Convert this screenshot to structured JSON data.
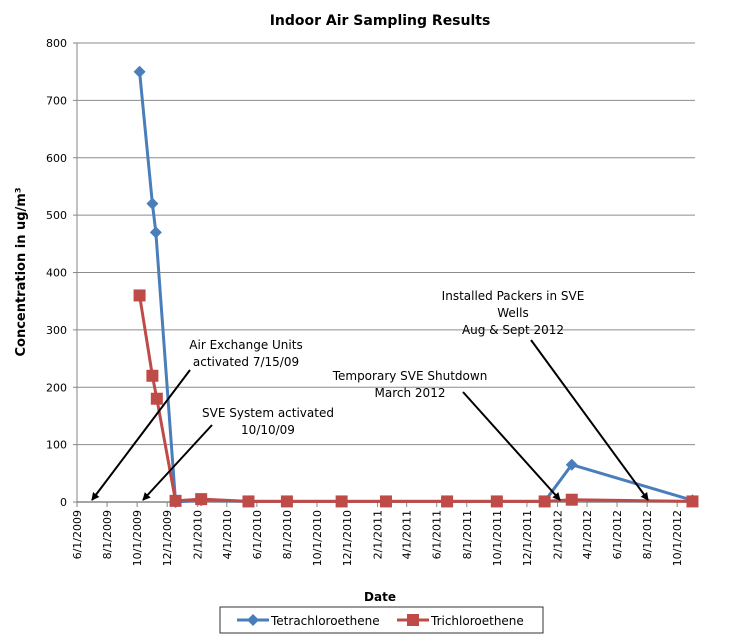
{
  "chart_data": {
    "type": "line",
    "title": "Indoor Air Sampling Results",
    "xlabel": "Date",
    "ylabel": "Concentration in ug/m³",
    "ylim": [
      0,
      800
    ],
    "yticks": [
      "0",
      "100",
      "200",
      "300",
      "400",
      "500",
      "600",
      "700",
      "800"
    ],
    "xticks": [
      "6/1/2009",
      "8/1/2009",
      "10/1/2009",
      "12/1/2009",
      "2/1/2010",
      "4/1/2010",
      "6/1/2010",
      "8/1/2010",
      "10/1/2010",
      "12/1/2010",
      "2/1/2011",
      "4/1/2011",
      "6/1/2011",
      "8/1/2011",
      "10/1/2011",
      "12/1/2011",
      "2/1/2012",
      "4/1/2012",
      "6/1/2012",
      "8/1/2012",
      "10/1/2012"
    ],
    "grid": "horizontal",
    "legend_position": "bottom",
    "series": [
      {
        "name": "Tetrachloroethene",
        "color": "#4a7ebb",
        "marker": "diamond",
        "x": [
          "10/6/2009",
          "11/1/2009",
          "11/8/2009",
          "12/18/2009",
          "2/8/2010",
          "5/15/2010",
          "8/1/2010",
          "11/20/2010",
          "2/18/2011",
          "6/22/2011",
          "10/1/2011",
          "1/6/2012",
          "3/1/2012",
          "11/1/2012"
        ],
        "y": [
          750,
          520,
          470,
          0,
          3,
          1,
          1,
          1,
          1,
          1,
          1,
          1,
          65,
          3
        ]
      },
      {
        "name": "Trichloroethene",
        "color": "#be4b48",
        "marker": "square",
        "x": [
          "10/6/2009",
          "11/1/2009",
          "11/10/2009",
          "12/18/2009",
          "2/8/2010",
          "5/15/2010",
          "8/1/2010",
          "11/20/2010",
          "2/18/2011",
          "6/22/2011",
          "10/1/2011",
          "1/6/2012",
          "3/1/2012",
          "11/1/2012"
        ],
        "y": [
          360,
          220,
          180,
          2,
          5,
          1,
          1,
          1,
          1,
          1,
          1,
          1,
          4,
          1
        ]
      }
    ],
    "annotations": [
      {
        "lines": [
          "Air Exchange Units",
          "activated 7/15/09"
        ]
      },
      {
        "lines": [
          "SVE System activated",
          "10/10/09"
        ]
      },
      {
        "lines": [
          "Temporary SVE Shutdown",
          "March 2012"
        ]
      },
      {
        "lines": [
          "Installed Packers in SVE",
          "Wells",
          "Aug & Sept 2012"
        ]
      }
    ]
  }
}
